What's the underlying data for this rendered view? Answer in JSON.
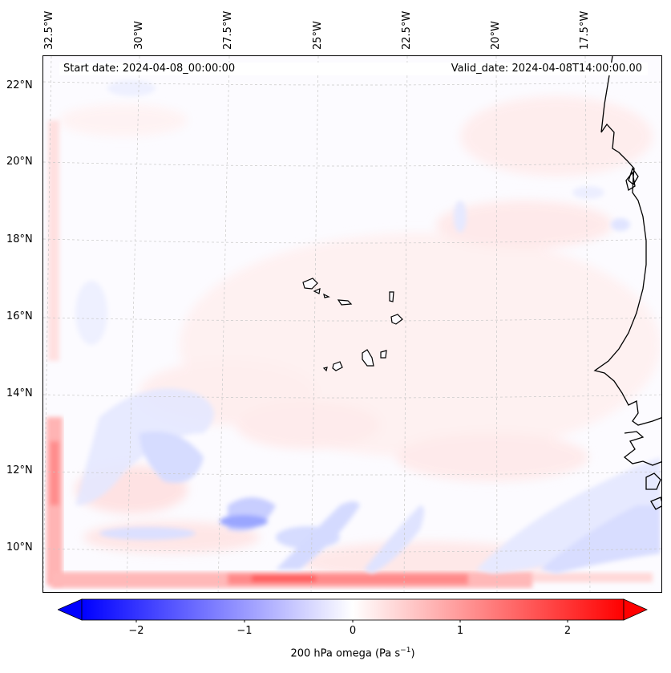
{
  "map": {
    "start_date": "Start date: 2024-04-08_00:00:00",
    "valid_date": "Valid_date: 2024-04-08T14:00:00.00",
    "longitude_labels": [
      "32.5°W",
      "30°W",
      "27.5°W",
      "25°W",
      "22.5°W",
      "20°W",
      "17.5°W"
    ],
    "latitude_labels": [
      "22°N",
      "20°N",
      "18°N",
      "16°N",
      "14°N",
      "12°N",
      "10°N"
    ],
    "field": "200 hPa omega",
    "colors": {
      "negative": "#0000ff",
      "zero": "#ffffff",
      "positive": "#ff0000",
      "coast": "#000000",
      "grid": "#c8c8c8"
    }
  },
  "colorbar": {
    "ticks": [
      "−2",
      "−1",
      "0",
      "1",
      "2"
    ],
    "label": "200 hPa omega (Pa s",
    "label_superscript": "−1",
    "label_close": ")",
    "range": [
      -2.7,
      2.7
    ],
    "extend": "both",
    "colormap": "bwr"
  }
}
